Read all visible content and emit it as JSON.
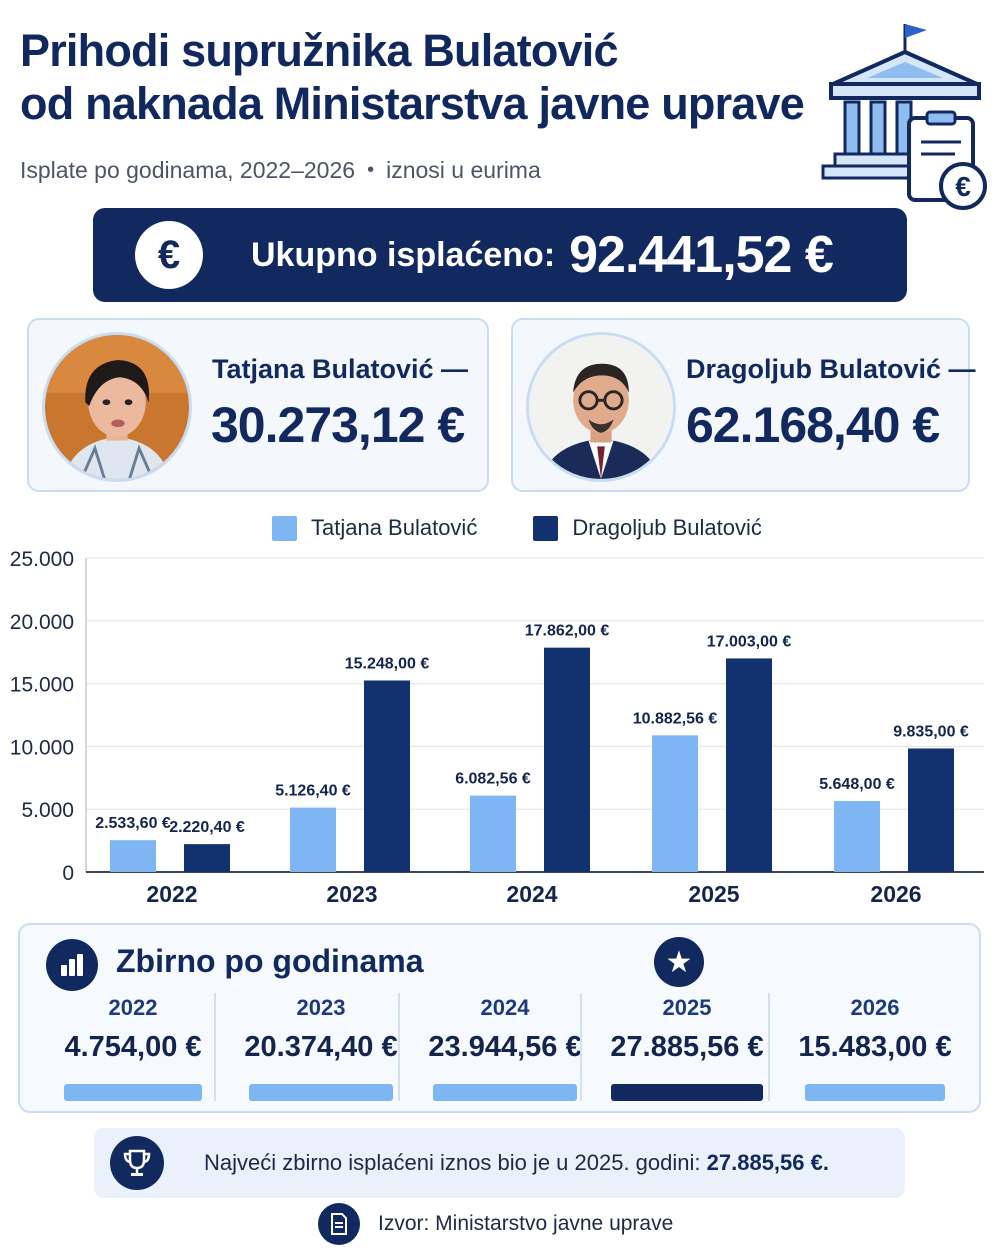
{
  "title_line1": "Prihodi supružnika Bulatović",
  "title_line2": "od naknada Ministarstva javne uprave",
  "subtitle_left": "Isplate po godinama, 2022–2026",
  "subtitle_sep": "•",
  "subtitle_right": "iznosi u eurima",
  "total": {
    "symbol": "€",
    "label": "Ukupno isplaćeno:",
    "value": "92.441,52 €"
  },
  "persons": [
    {
      "name": "Tatjana Bulatović —",
      "amount": "30.273,12 €"
    },
    {
      "name": "Dragoljub Bulatović —",
      "amount": "62.168,40 €"
    }
  ],
  "colors": {
    "tatjana": "#7db6f3",
    "dragoljub": "#12316f",
    "navy": "#12295f"
  },
  "chart_data": {
    "type": "bar",
    "categories": [
      "2022",
      "2023",
      "2024",
      "2025",
      "2026"
    ],
    "series": [
      {
        "name": "Tatjana Bulatović",
        "values": [
          2533.6,
          5126.4,
          6082.56,
          10882.56,
          5648.0
        ],
        "labels": [
          "2.533,60 €",
          "5.126,40 €",
          "6.082,56 €",
          "10.882,56 €",
          "5.648,00 €"
        ]
      },
      {
        "name": "Dragoljub Bulatović",
        "values": [
          2220.4,
          15248.0,
          17862.0,
          17003.0,
          9835.0
        ],
        "labels": [
          "2.220,40 €",
          "15.248,00 €",
          "17.862,00 €",
          "17.003,00 €",
          "9.835,00 €"
        ]
      }
    ],
    "ylim": [
      0,
      25000
    ],
    "yticks": [
      0,
      5000,
      10000,
      15000,
      20000,
      25000
    ],
    "ytick_labels": [
      "0",
      "5.000",
      "10.000",
      "15.000",
      "20.000",
      "25.000"
    ],
    "grid": true,
    "legend": "top-center"
  },
  "summary": {
    "title": "Zbirno po godinama",
    "years": [
      {
        "year": "2022",
        "value": "4.754,00 €",
        "highlight": false
      },
      {
        "year": "2023",
        "value": "20.374,40 €",
        "highlight": false
      },
      {
        "year": "2024",
        "value": "23.944,56 €",
        "highlight": false
      },
      {
        "year": "2025",
        "value": "27.885,56 €",
        "highlight": true
      },
      {
        "year": "2026",
        "value": "15.483,00 €",
        "highlight": false
      }
    ]
  },
  "note": {
    "text": "Najveći zbirno isplaćeni iznos bio je u 2025. godini:",
    "value": "27.885,56 €."
  },
  "source": "Izvor: Ministarstvo javne uprave"
}
